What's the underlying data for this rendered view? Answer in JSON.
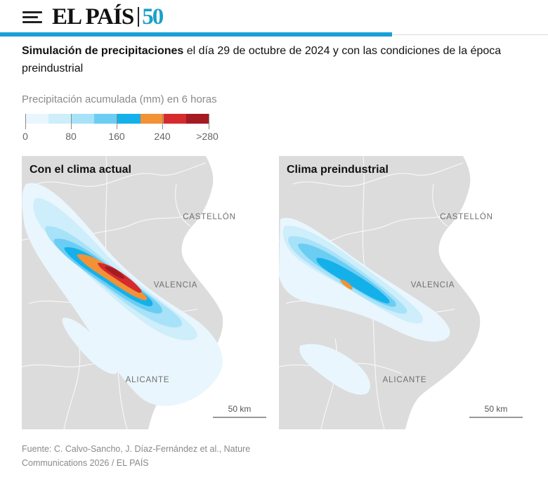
{
  "header": {
    "logo_text": "EL PAÍS",
    "logo_badge": "50",
    "accent_color": "#1aa0d8"
  },
  "title": {
    "bold": "Simulación de precipitaciones",
    "rest": " el día 29 de octubre de 2024 y con las condiciones de la época preindustrial"
  },
  "legend": {
    "title": "Precipitación acumulada (mm) en 6 horas",
    "colors": [
      "#e9f6fd",
      "#cdeefa",
      "#a7e2f8",
      "#6ccdf3",
      "#14b0ea",
      "#f29235",
      "#d52b2e",
      "#a41b22"
    ],
    "labels": [
      "0",
      "80",
      "160",
      "240",
      ">280"
    ]
  },
  "maps": [
    {
      "title": "Con el clima actual",
      "cities": [
        "CASTELLÓN",
        "VALENCIA",
        "ALICANTE"
      ],
      "scale": "50 km",
      "max_class": ">280"
    },
    {
      "title": "Clima preindustrial",
      "cities": [
        "CASTELLÓN",
        "VALENCIA",
        "ALICANTE"
      ],
      "scale": "50 km",
      "max_class": "240"
    }
  ],
  "source": {
    "line1": "Fuente: C. Calvo-Sancho, J. Díaz-Fernández et al., Nature",
    "line2": "Communications 2026 / EL PAÍS"
  }
}
